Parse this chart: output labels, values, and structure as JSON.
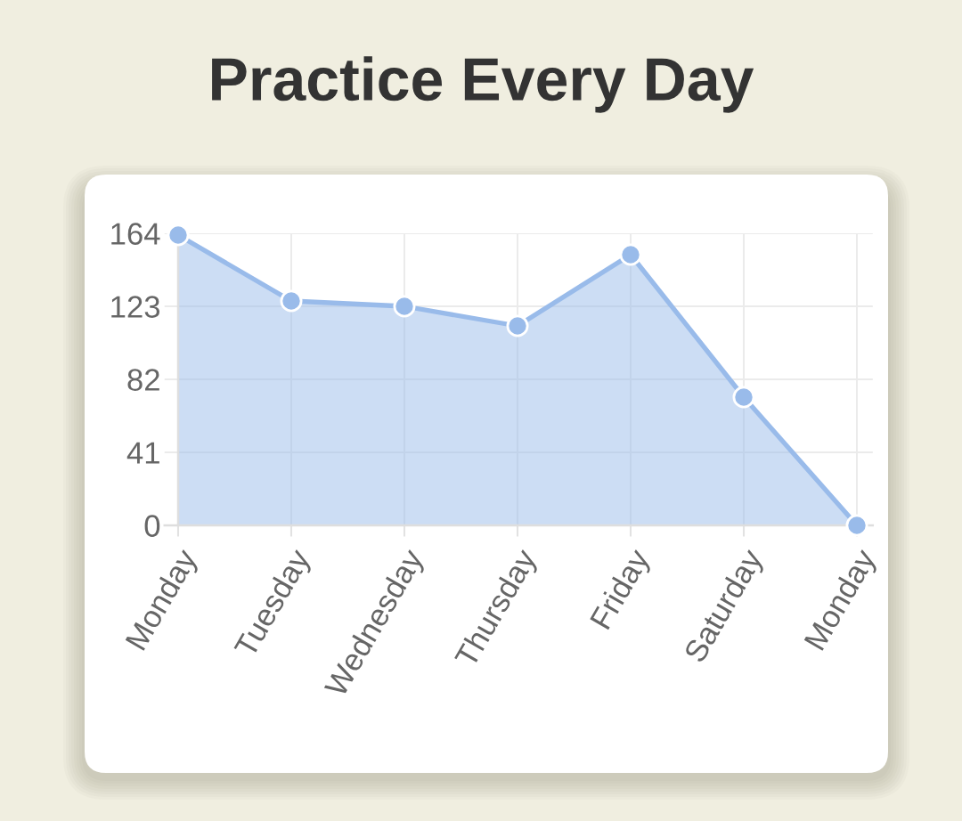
{
  "chart_data": {
    "type": "area",
    "title": "Practice Every Day",
    "categories": [
      "Monday",
      "Tuesday",
      "Wednesday",
      "Thursday",
      "Friday",
      "Saturday",
      "Monday"
    ],
    "series": [
      {
        "color": "#99bbea",
        "values": [
          163,
          126,
          123,
          112,
          152,
          72,
          0
        ]
      }
    ],
    "ylim": [
      0,
      164
    ],
    "yticks": [
      0,
      41,
      82,
      123,
      164
    ],
    "grid": true,
    "marker": "circle"
  }
}
